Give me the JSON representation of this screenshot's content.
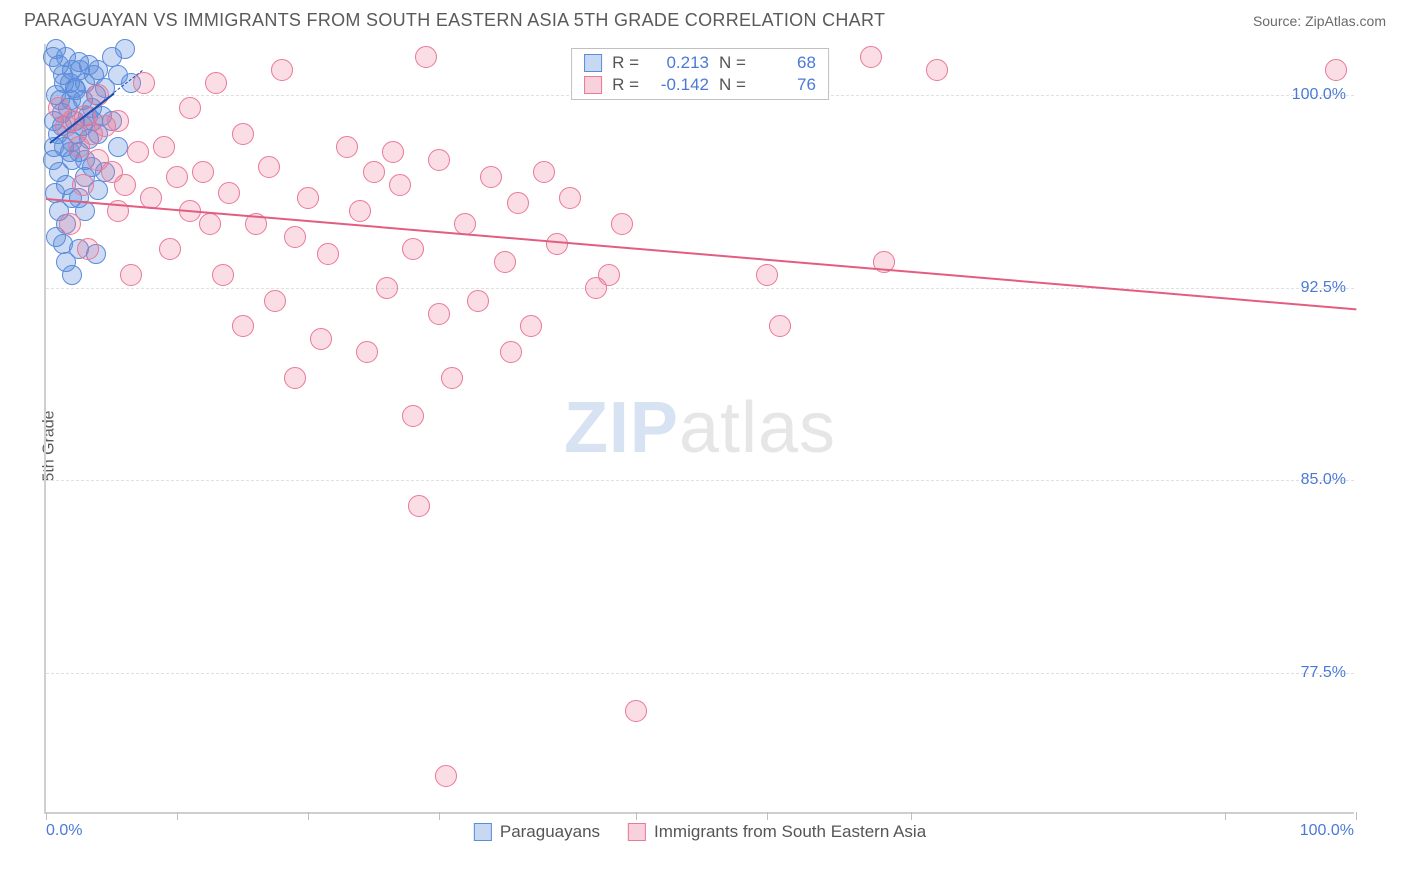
{
  "header": {
    "title": "PARAGUAYAN VS IMMIGRANTS FROM SOUTH EASTERN ASIA 5TH GRADE CORRELATION CHART",
    "source": "Source: ZipAtlas.com"
  },
  "chart": {
    "type": "scatter",
    "ylabel": "5th Grade",
    "xlim": [
      0,
      100
    ],
    "ylim": [
      72,
      102
    ],
    "xtick_labels": {
      "min": "0.0%",
      "max": "100.0%"
    },
    "xtick_positions_pct": [
      0,
      10,
      20,
      30,
      45,
      55,
      66,
      90,
      100
    ],
    "ytick_labels": [
      "100.0%",
      "92.5%",
      "85.0%",
      "77.5%"
    ],
    "ytick_values": [
      100,
      92.5,
      85,
      77.5
    ],
    "grid_color": "#e0e0e0",
    "axis_label_color": "#4a7ad6",
    "background_color": "#ffffff",
    "watermark": {
      "part1": "ZIP",
      "part2": "atlas"
    },
    "series": [
      {
        "name": "Paraguayans",
        "color_fill": "rgba(90,140,220,0.30)",
        "color_stroke": "#5a8cdc",
        "swatch_fill": "#c7d8f2",
        "swatch_stroke": "#5a8cdc",
        "marker_radius": 10,
        "R": "0.213",
        "N": "68",
        "trend": {
          "x1": 0.3,
          "y1": 98.2,
          "x2": 7.4,
          "y2": 101.0,
          "color": "#1a4db3",
          "solid_to_x": 5.2
        },
        "points": [
          [
            0.5,
            101.5
          ],
          [
            0.8,
            101.8
          ],
          [
            1.0,
            101.2
          ],
          [
            1.3,
            100.8
          ],
          [
            1.5,
            101.5
          ],
          [
            1.8,
            100.5
          ],
          [
            2.0,
            101.0
          ],
          [
            2.3,
            100.2
          ],
          [
            2.5,
            101.3
          ],
          [
            2.8,
            99.8
          ],
          [
            3.0,
            100.5
          ],
          [
            3.3,
            101.2
          ],
          [
            3.5,
            99.5
          ],
          [
            3.8,
            100.0
          ],
          [
            4.0,
            101.0
          ],
          [
            4.3,
            99.2
          ],
          [
            4.5,
            100.3
          ],
          [
            5.0,
            101.5
          ],
          [
            5.5,
            100.8
          ],
          [
            6.0,
            101.8
          ],
          [
            0.6,
            99.0
          ],
          [
            0.9,
            98.5
          ],
          [
            1.2,
            99.3
          ],
          [
            1.4,
            98.0
          ],
          [
            1.7,
            99.5
          ],
          [
            2.0,
            98.2
          ],
          [
            2.2,
            99.0
          ],
          [
            2.5,
            97.8
          ],
          [
            2.8,
            98.8
          ],
          [
            3.0,
            97.5
          ],
          [
            3.3,
            98.3
          ],
          [
            3.6,
            99.0
          ],
          [
            1.0,
            97.0
          ],
          [
            1.5,
            96.5
          ],
          [
            2.0,
            97.5
          ],
          [
            2.5,
            96.0
          ],
          [
            3.0,
            96.8
          ],
          [
            3.5,
            97.2
          ],
          [
            4.0,
            96.3
          ],
          [
            1.2,
            98.8
          ],
          [
            1.8,
            97.8
          ],
          [
            2.4,
            98.5
          ],
          [
            0.8,
            100.0
          ],
          [
            1.1,
            99.8
          ],
          [
            1.4,
            100.5
          ],
          [
            2.0,
            96.0
          ],
          [
            3.0,
            95.5
          ],
          [
            1.5,
            95.0
          ],
          [
            2.5,
            94.0
          ],
          [
            3.8,
            93.8
          ],
          [
            0.8,
            94.5
          ],
          [
            1.5,
            93.5
          ],
          [
            4.0,
            98.5
          ],
          [
            4.5,
            97.0
          ],
          [
            5.0,
            99.0
          ],
          [
            5.5,
            98.0
          ],
          [
            6.5,
            100.5
          ],
          [
            0.5,
            97.5
          ],
          [
            0.7,
            96.2
          ],
          [
            1.0,
            95.5
          ],
          [
            2.2,
            100.3
          ],
          [
            2.6,
            101.0
          ],
          [
            3.2,
            99.2
          ],
          [
            3.7,
            100.8
          ],
          [
            1.3,
            94.2
          ],
          [
            2.0,
            93.0
          ],
          [
            0.6,
            98.0
          ],
          [
            1.9,
            99.8
          ]
        ]
      },
      {
        "name": "Immigrants from South Eastern Asia",
        "color_fill": "rgba(235,120,150,0.25)",
        "color_stroke": "#eb7896",
        "swatch_fill": "#f7d1dc",
        "swatch_stroke": "#eb7896",
        "marker_radius": 11,
        "R": "-0.142",
        "N": "76",
        "trend": {
          "x1": 0,
          "y1": 96.0,
          "x2": 100,
          "y2": 91.7,
          "color": "#e35d82",
          "solid_to_x": 100
        },
        "points": [
          [
            1.0,
            99.5
          ],
          [
            1.5,
            98.8
          ],
          [
            2.0,
            99.0
          ],
          [
            2.5,
            98.0
          ],
          [
            3.0,
            99.2
          ],
          [
            3.5,
            98.5
          ],
          [
            4.0,
            97.5
          ],
          [
            4.5,
            98.8
          ],
          [
            5.0,
            97.0
          ],
          [
            5.5,
            99.0
          ],
          [
            6.0,
            96.5
          ],
          [
            7.0,
            97.8
          ],
          [
            8.0,
            96.0
          ],
          [
            9.0,
            98.0
          ],
          [
            10.0,
            96.8
          ],
          [
            11.0,
            95.5
          ],
          [
            12.0,
            97.0
          ],
          [
            13.0,
            100.5
          ],
          [
            14.0,
            96.2
          ],
          [
            15.0,
            98.5
          ],
          [
            16.0,
            95.0
          ],
          [
            17.0,
            97.2
          ],
          [
            18.0,
            101.0
          ],
          [
            19.0,
            94.5
          ],
          [
            20.0,
            96.0
          ],
          [
            21.5,
            93.8
          ],
          [
            23.0,
            98.0
          ],
          [
            24.0,
            95.5
          ],
          [
            25.0,
            97.0
          ],
          [
            26.0,
            92.5
          ],
          [
            27.0,
            96.5
          ],
          [
            28.0,
            94.0
          ],
          [
            29.0,
            101.5
          ],
          [
            30.0,
            91.5
          ],
          [
            31.0,
            89.0
          ],
          [
            28.0,
            87.5
          ],
          [
            30.0,
            97.5
          ],
          [
            32.0,
            95.0
          ],
          [
            33.0,
            92.0
          ],
          [
            34.0,
            96.8
          ],
          [
            35.0,
            93.5
          ],
          [
            35.5,
            90.0
          ],
          [
            36.0,
            95.8
          ],
          [
            37.0,
            91.0
          ],
          [
            28.5,
            84.0
          ],
          [
            30.5,
            73.5
          ],
          [
            38.0,
            97.0
          ],
          [
            39.0,
            94.2
          ],
          [
            40.0,
            96.0
          ],
          [
            45.0,
            76.0
          ],
          [
            42.0,
            92.5
          ],
          [
            44.0,
            95.0
          ],
          [
            43.0,
            93.0
          ],
          [
            19.0,
            89.0
          ],
          [
            21.0,
            90.5
          ],
          [
            15.0,
            91.0
          ],
          [
            11.0,
            99.5
          ],
          [
            13.5,
            93.0
          ],
          [
            55.0,
            93.0
          ],
          [
            56.0,
            91.0
          ],
          [
            63.0,
            101.5
          ],
          [
            64.0,
            93.5
          ],
          [
            68.0,
            101.0
          ],
          [
            98.5,
            101.0
          ],
          [
            9.5,
            94.0
          ],
          [
            7.5,
            100.5
          ],
          [
            17.5,
            92.0
          ],
          [
            24.5,
            90.0
          ],
          [
            26.5,
            97.8
          ],
          [
            12.5,
            95.0
          ],
          [
            6.5,
            93.0
          ],
          [
            4.0,
            100.0
          ],
          [
            2.8,
            96.5
          ],
          [
            1.8,
            95.0
          ],
          [
            3.2,
            94.0
          ],
          [
            5.5,
            95.5
          ]
        ]
      }
    ],
    "legend_bottom": [
      "Paraguayans",
      "Immigrants from South Eastern Asia"
    ]
  }
}
